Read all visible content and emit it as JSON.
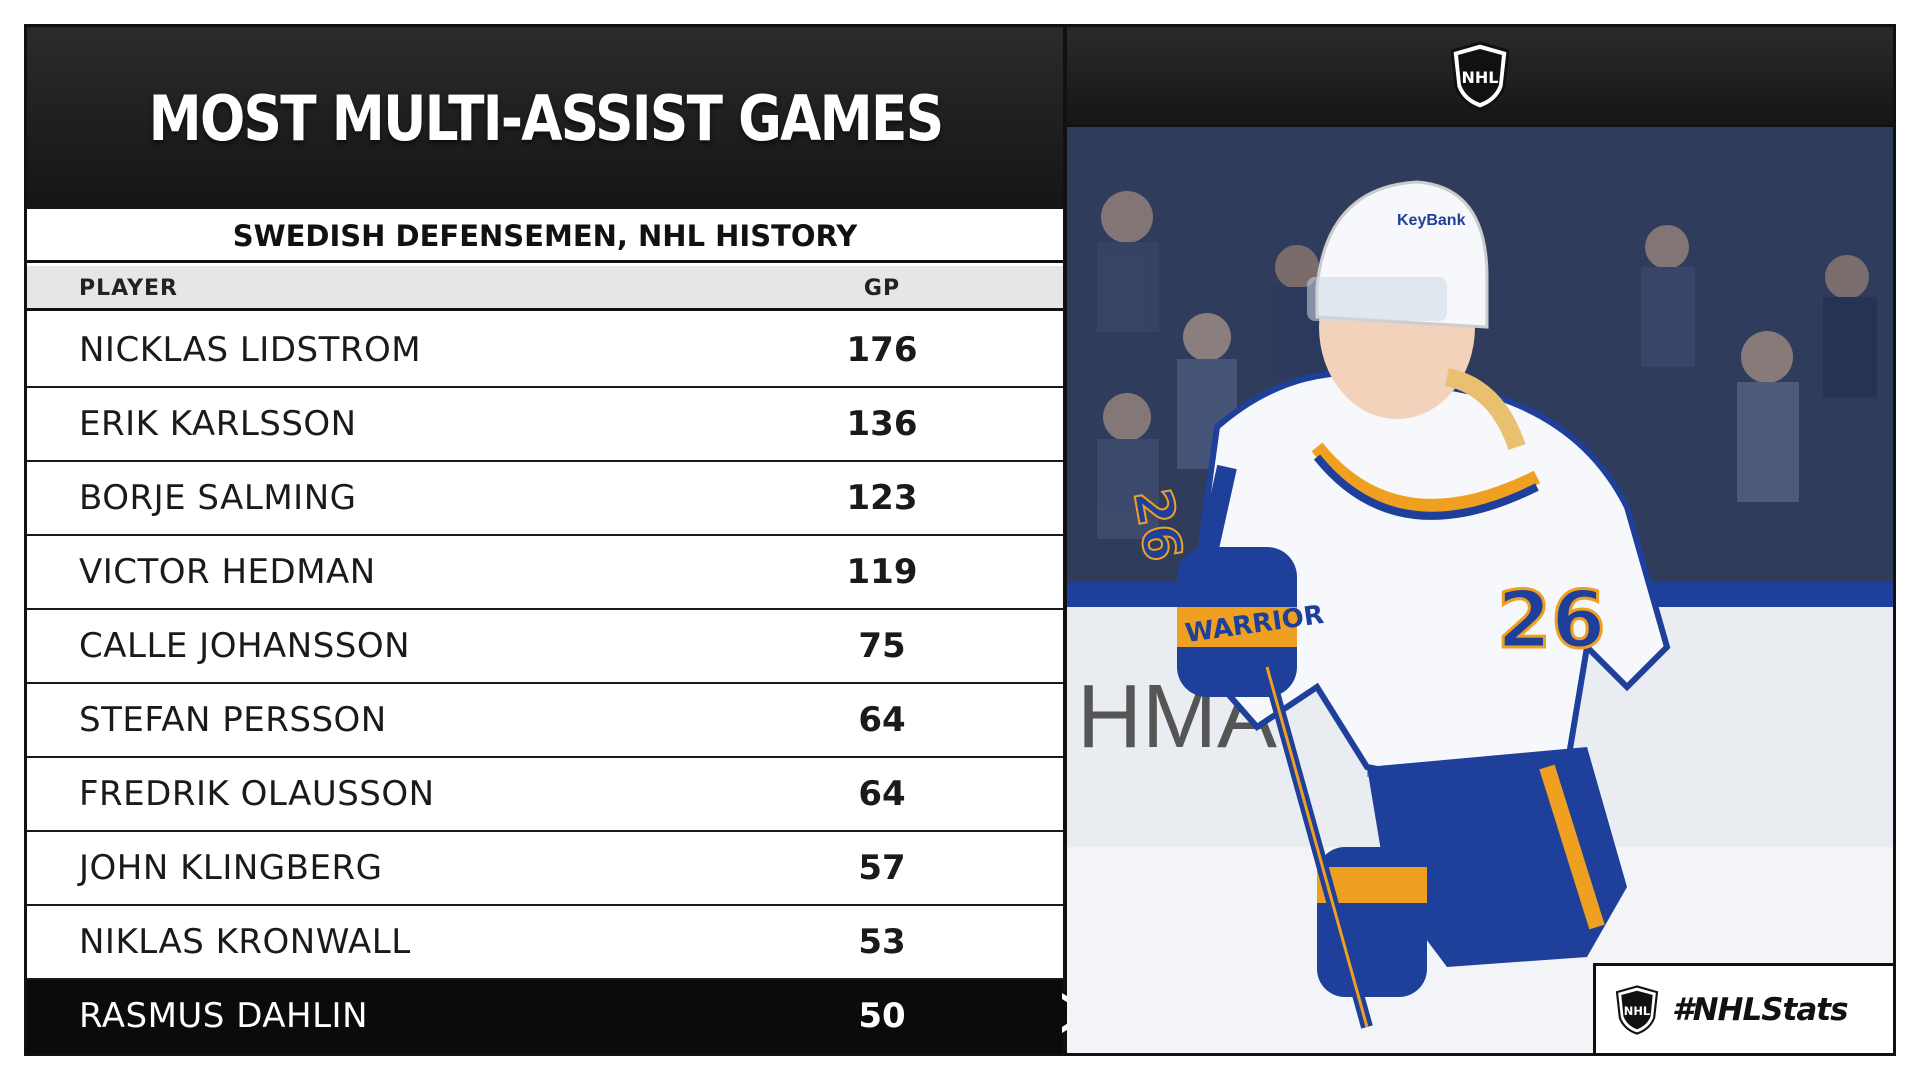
{
  "header": {
    "title": "MOST MULTI-ASSIST GAMES",
    "subtitle": "SWEDISH DEFENSEMEN, NHL HISTORY"
  },
  "table": {
    "columns": [
      "PLAYER",
      "GP"
    ],
    "rows": [
      {
        "player": "NICKLAS LIDSTROM",
        "gp": "176"
      },
      {
        "player": "ERIK KARLSSON",
        "gp": "136"
      },
      {
        "player": "BORJE SALMING",
        "gp": "123"
      },
      {
        "player": "VICTOR HEDMAN",
        "gp": "119"
      },
      {
        "player": "CALLE JOHANSSON",
        "gp": "75"
      },
      {
        "player": "STEFAN PERSSON",
        "gp": "64"
      },
      {
        "player": "FREDRIK OLAUSSON",
        "gp": "64"
      },
      {
        "player": "JOHN KLINGBERG",
        "gp": "57"
      },
      {
        "player": "NIKLAS KRONWALL",
        "gp": "53"
      },
      {
        "player": "RASMUS DAHLIN",
        "gp": "50"
      }
    ],
    "highlight_index": 9
  },
  "photo": {
    "jersey_number": "26",
    "helmet_sponsor": "KeyBank",
    "glove_brand": "WARRIOR",
    "board_text": "HMA"
  },
  "branding": {
    "logo": "NHL",
    "hashtag": "#NHLStats"
  },
  "colors": {
    "dark": "#111111",
    "sabres_blue": "#1e3f9a",
    "sabres_gold": "#f0a021",
    "white": "#ffffff"
  }
}
